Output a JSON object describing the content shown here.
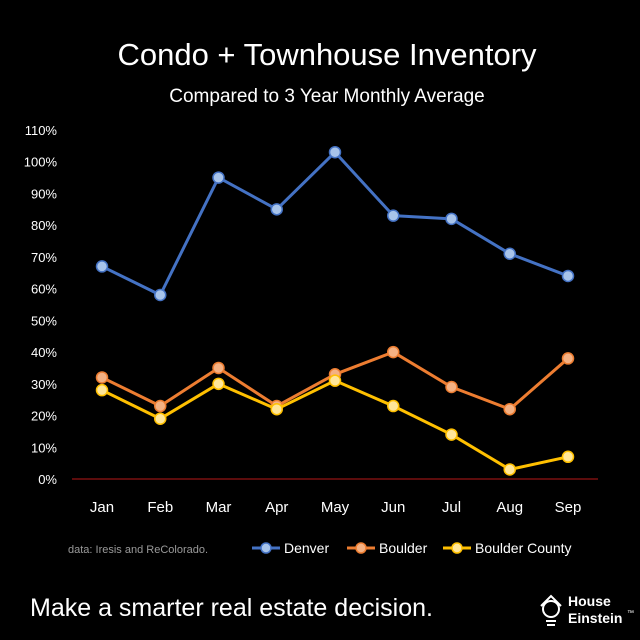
{
  "chart_data": {
    "type": "line",
    "title": "Condo + Townhouse Inventory",
    "subtitle": "Compared to 3 Year Monthly Average",
    "categories": [
      "Jan",
      "Feb",
      "Mar",
      "Apr",
      "May",
      "Jun",
      "Jul",
      "Aug",
      "Sep"
    ],
    "series": [
      {
        "name": "Denver",
        "color": "#4472C4",
        "marker": "#A8C4EA",
        "values": [
          67,
          58,
          95,
          85,
          103,
          83,
          82,
          71,
          64
        ]
      },
      {
        "name": "Boulder",
        "color": "#ED7D31",
        "marker": "#F4B183",
        "values": [
          32,
          23,
          35,
          23,
          33,
          40,
          29,
          22,
          38
        ]
      },
      {
        "name": "Boulder County",
        "color": "#FFC000",
        "marker": "#FFE699",
        "values": [
          28,
          19,
          30,
          22,
          31,
          23,
          14,
          3,
          7
        ]
      }
    ],
    "yticks": [
      "0%",
      "10%",
      "20%",
      "30%",
      "40%",
      "50%",
      "60%",
      "70%",
      "80%",
      "90%",
      "100%",
      "110%"
    ],
    "ylim": [
      0,
      110
    ],
    "xlabel": "",
    "ylabel": "",
    "grid": false,
    "legend_position": "bottom-right",
    "axis_color": "#7B1010"
  },
  "source_note": "data: Iresis and ReColorado.",
  "footer": {
    "tagline": "Make a smarter real estate decision.",
    "brand_line1": "House",
    "brand_line2": "Einstein",
    "brand_tm": "™"
  }
}
